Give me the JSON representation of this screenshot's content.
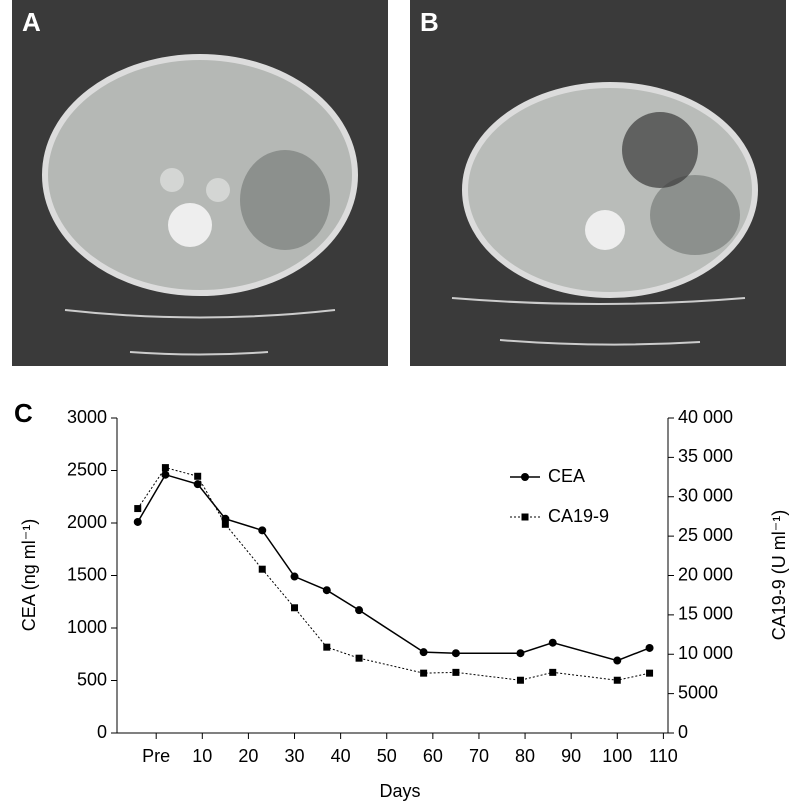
{
  "panel_labels": {
    "a": "A",
    "b": "B",
    "c": "C"
  },
  "chart_data": {
    "type": "line",
    "x_label": "Days",
    "y_label": "CEA (ng ml⁻¹)",
    "y2_label": "CA19-9 (U ml⁻¹)",
    "x": [
      -4,
      2,
      9,
      15,
      23,
      30,
      37,
      44,
      58,
      65,
      79,
      86,
      100,
      107
    ],
    "series": [
      {
        "name": "CEA",
        "color": "#000000",
        "marker": "circle",
        "dash": false,
        "values": [
          2010,
          2460,
          2370,
          2040,
          1930,
          1490,
          1360,
          1170,
          770,
          760,
          760,
          860,
          690,
          810
        ]
      },
      {
        "name": "CA19-9",
        "color": "#000000",
        "marker": "square",
        "dash": true,
        "axis": "y2",
        "values": [
          28500,
          33700,
          32600,
          26500,
          20800,
          15900,
          10900,
          9500,
          7600,
          7700,
          6700,
          7700,
          6700,
          7600
        ]
      }
    ],
    "xlim": [
      -8.5,
      111
    ],
    "xticks": [
      {
        "value": 0,
        "label": "Pre"
      },
      10,
      20,
      30,
      40,
      50,
      60,
      70,
      80,
      90,
      100,
      110
    ],
    "ylim": [
      0,
      3000
    ],
    "yticks": [
      0,
      500,
      1000,
      1500,
      2000,
      2500,
      3000
    ],
    "y2lim": [
      0,
      40000
    ],
    "y2ticks": [
      0,
      5000,
      {
        "value": 10000,
        "label": "10 000"
      },
      {
        "value": 15000,
        "label": "15 000"
      },
      {
        "value": 20000,
        "label": "20 000"
      },
      {
        "value": 25000,
        "label": "25 000"
      },
      {
        "value": 30000,
        "label": "30 000"
      },
      {
        "value": 35000,
        "label": "35 000"
      },
      {
        "value": 40000,
        "label": "40 000"
      }
    ],
    "grid": false,
    "legend": "upper right"
  }
}
